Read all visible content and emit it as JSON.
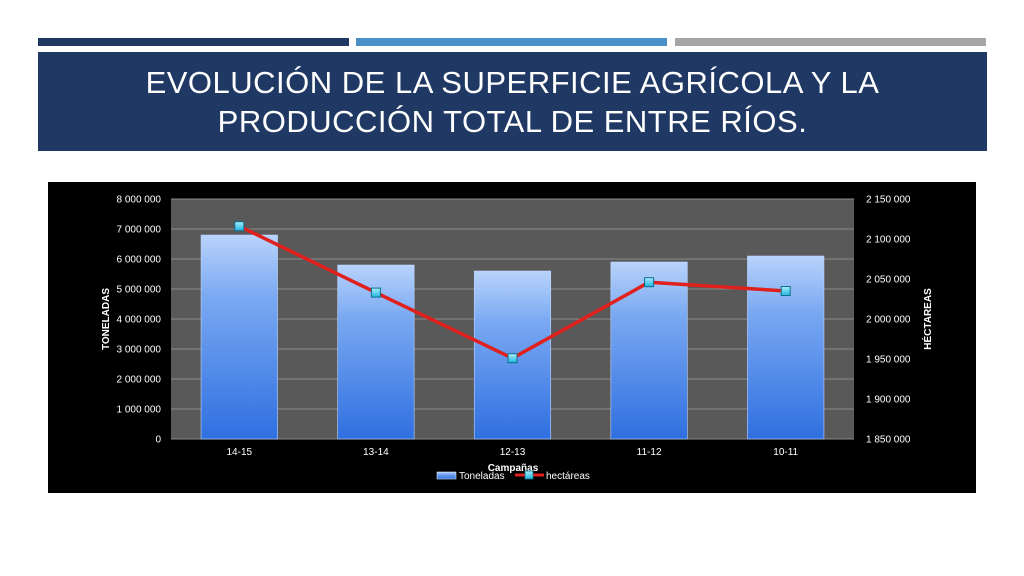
{
  "slide": {
    "title_line1": "EVOLUCIÓN DE LA SUPERFICIE AGRÍCOLA Y LA",
    "title_line2": "PRODUCCIÓN TOTAL  DE ENTRE RÍOS."
  },
  "colors": {
    "banner": "#1f3864",
    "accent_dark": "#1f3864",
    "accent_mid": "#4a8fc6",
    "accent_grey": "#a6a6a6",
    "bar_fill": "#4f86e8",
    "line": "#e0201c",
    "marker": "#33ccee",
    "plot_bg": "#595959"
  },
  "chart_data": {
    "type": "bar",
    "categories": [
      "14-15",
      "13-14",
      "12-13",
      "11-12",
      "10-11"
    ],
    "xlabel": "Campañas",
    "series": [
      {
        "name": "Toneladas",
        "type": "bar",
        "axis": "left",
        "values": [
          6800000,
          5800000,
          5600000,
          5900000,
          6100000
        ]
      },
      {
        "name": "hectáreas",
        "type": "line",
        "axis": "right",
        "values": [
          2116000,
          2033000,
          1951000,
          2046000,
          2035000
        ]
      }
    ],
    "y_left": {
      "label": "TONELADAS",
      "range": [
        0,
        8000000
      ],
      "ticks": [
        "0",
        "1 000 000",
        "2 000 000",
        "3 000 000",
        "4 000 000",
        "5 000 000",
        "6 000 000",
        "7 000 000",
        "8 000 000"
      ]
    },
    "y_right": {
      "label": "HÉCTAREAS",
      "range": [
        1850000,
        2150000
      ],
      "ticks": [
        "1 850 000",
        "1 900 000",
        "1 950 000",
        "2 000 000",
        "2 050 000",
        "2 100 000",
        "2 150 000"
      ]
    },
    "grid": true,
    "legend": "bottom-center"
  }
}
